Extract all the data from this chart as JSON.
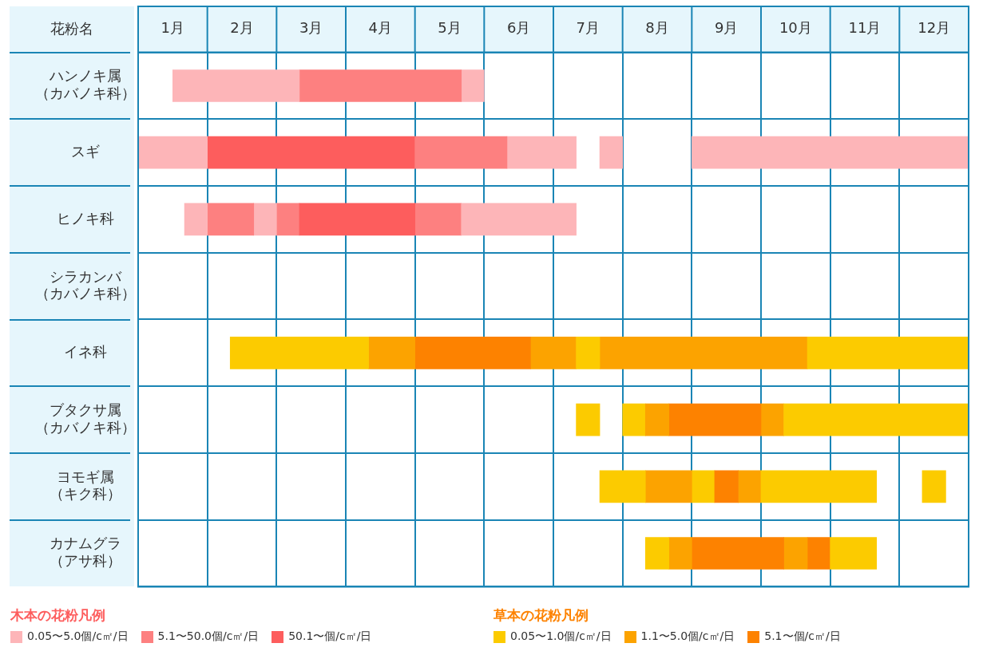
{
  "chart_data": {
    "type": "bar",
    "orientation": "horizontal",
    "ylabel": "花粉名",
    "categories": [
      "ハンノキ属（カバノキ科）",
      "スギ",
      "ヒノキ科",
      "シラカンバ（カバノキ科）",
      "イネ科",
      "ブタクサ属（カバノキ科）",
      "ヨモギ属（キク科）",
      "カナムグラ（アサ科）"
    ],
    "xlim": [
      0,
      12
    ],
    "xticks": [
      {
        "value": 0,
        "label": null
      },
      {
        "value": 0.5,
        "label": "1月"
      },
      {
        "value": 1,
        "label": null
      },
      {
        "value": 1.5,
        "label": "2月"
      },
      {
        "value": 2,
        "label": null
      },
      {
        "value": 2.5,
        "label": "3月"
      },
      {
        "value": 3,
        "label": null
      },
      {
        "value": 3.5,
        "label": "4月"
      },
      {
        "value": 4,
        "label": null
      },
      {
        "value": 4.5,
        "label": "5月"
      },
      {
        "value": 5,
        "label": null
      },
      {
        "value": 5.5,
        "label": "6月"
      },
      {
        "value": 6,
        "label": null
      },
      {
        "value": 6.5,
        "label": "7月"
      },
      {
        "value": 7,
        "label": null
      },
      {
        "value": 7.5,
        "label": "8月"
      },
      {
        "value": 8,
        "label": null
      },
      {
        "value": 8.5,
        "label": "9月"
      },
      {
        "value": 9,
        "label": null
      },
      {
        "value": 9.5,
        "label": "10月"
      },
      {
        "value": 10,
        "label": null
      },
      {
        "value": 10.5,
        "label": "11月"
      },
      {
        "value": 11,
        "label": null
      },
      {
        "value": 11.5,
        "label": "12月"
      },
      {
        "value": 12,
        "label": null
      }
    ],
    "grid": true,
    "legend": "bottom",
    "annotations": [
      "木本の花粉凡例",
      "草本の花粉凡例"
    ],
    "series": [
      {
        "name": "0.05〜5.0個/c㎡/日",
        "color": "#fdb5b8",
        "base": [
          0.5,
          0,
          0.67,
          null,
          null,
          null,
          null,
          null
        ],
        "values": [
          1.83,
          1,
          0.33,
          null,
          null,
          null,
          null,
          null
        ]
      },
      {
        "name": "5.1〜50.0個/c㎡/日",
        "color": "#fd8080",
        "base": [
          2.33,
          4,
          1,
          null,
          null,
          null,
          null,
          null
        ],
        "values": [
          2.34,
          1.33,
          0.67,
          null,
          null,
          null,
          null,
          null
        ]
      },
      {
        "name": "50.1〜個/c㎡/日",
        "color": "#fd5d5d",
        "base": [
          null,
          1,
          2.33,
          null,
          null,
          null,
          null,
          null
        ],
        "values": [
          null,
          3,
          1.67,
          null,
          null,
          null,
          null,
          null
        ]
      },
      {
        "name": "0.05〜1.0個/c㎡/日",
        "color": "#fccb00",
        "base": [
          null,
          null,
          null,
          null,
          1.33,
          6.33,
          6.67,
          7.33
        ],
        "values": [
          null,
          null,
          null,
          null,
          2,
          0.34,
          0.66,
          0.34
        ]
      },
      {
        "name": "1.1〜5.0個/c㎡/日",
        "color": "#fca300",
        "base": [
          null,
          null,
          null,
          null,
          3.33,
          7.33,
          7.33,
          7.67
        ],
        "values": [
          null,
          null,
          null,
          null,
          0.67,
          0.34,
          0.67,
          0.33
        ]
      },
      {
        "name": "5.1〜個/c㎡/日",
        "color": "#fd8200",
        "base": [
          null,
          null,
          null,
          null,
          4,
          7.67,
          8.33,
          8
        ],
        "values": [
          null,
          null,
          null,
          null,
          1.67,
          1.33,
          0.34,
          1.33
        ]
      },
      {
        "color": "#fdb5b8",
        "base": [
          4.67,
          5.33,
          1.67,
          null,
          null,
          null,
          null,
          null
        ],
        "values": [
          0.33,
          1,
          0.33,
          null,
          null,
          null,
          null,
          null
        ]
      },
      {
        "color": "#fdb5b8",
        "base": [
          null,
          6.67,
          4.67,
          null,
          null,
          null,
          null,
          null
        ],
        "values": [
          null,
          0.33,
          1.66,
          null,
          null,
          null,
          null,
          null
        ]
      },
      {
        "color": "#fdb5b8",
        "base": [
          null,
          8,
          null,
          null,
          null,
          null,
          null,
          null
        ],
        "values": [
          null,
          4,
          null,
          null,
          null,
          null,
          null,
          null
        ]
      },
      {
        "color": "#fd8080",
        "base": [
          null,
          null,
          2,
          null,
          null,
          null,
          null,
          null
        ],
        "values": [
          null,
          null,
          0.33,
          null,
          null,
          null,
          null,
          null
        ]
      },
      {
        "color": "#fd8080",
        "base": [
          null,
          null,
          4,
          null,
          null,
          null,
          null,
          null
        ],
        "values": [
          null,
          null,
          0.67,
          null,
          null,
          null,
          null,
          null
        ]
      },
      {
        "color": "#fccb00",
        "base": [
          null,
          null,
          null,
          null,
          6.33,
          7,
          8,
          10
        ],
        "values": [
          null,
          null,
          null,
          null,
          0.34,
          0.33,
          0.33,
          0.67
        ]
      },
      {
        "color": "#fccb00",
        "base": [
          null,
          null,
          null,
          null,
          9.67,
          9.33,
          9,
          null
        ],
        "values": [
          null,
          null,
          null,
          null,
          2.33,
          2.67,
          1.67,
          null
        ]
      },
      {
        "color": "#fccb00",
        "base": [
          null,
          null,
          null,
          null,
          null,
          null,
          11.33,
          null
        ],
        "values": [
          null,
          null,
          null,
          null,
          null,
          null,
          0.34,
          null
        ]
      },
      {
        "color": "#fca300",
        "base": [
          null,
          null,
          null,
          null,
          5.67,
          9,
          8.67,
          9.33
        ],
        "values": [
          null,
          null,
          null,
          null,
          0.66,
          0.33,
          0.33,
          0.34
        ]
      },
      {
        "color": "#fca300",
        "base": [
          null,
          null,
          null,
          null,
          6.67,
          null,
          null,
          null
        ],
        "values": [
          null,
          null,
          null,
          null,
          3,
          null,
          null,
          null
        ]
      },
      {
        "color": "#fd8200",
        "base": [
          null,
          null,
          null,
          null,
          null,
          null,
          null,
          9.67
        ],
        "values": [
          null,
          null,
          null,
          null,
          null,
          null,
          null,
          0.33
        ]
      }
    ]
  }
}
